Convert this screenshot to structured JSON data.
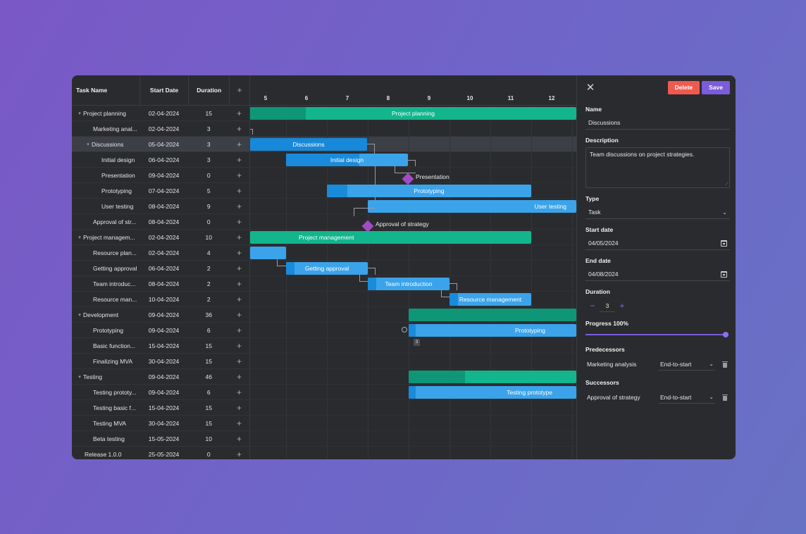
{
  "grid": {
    "headers": {
      "name": "Task Name",
      "start": "Start Date",
      "duration": "Duration",
      "add": "+"
    },
    "rows": [
      {
        "name": "Project planning",
        "start": "02-04-2024",
        "duration": "15",
        "caret": "▾"
      },
      {
        "name": "Marketing anal...",
        "start": "02-04-2024",
        "duration": "3",
        "caret": ""
      },
      {
        "name": "Discussions",
        "start": "05-04-2024",
        "duration": "3",
        "caret": "▾"
      },
      {
        "name": "Initial design",
        "start": "06-04-2024",
        "duration": "3",
        "caret": ""
      },
      {
        "name": "Presentation",
        "start": "09-04-2024",
        "duration": "0",
        "caret": ""
      },
      {
        "name": "Prototyping",
        "start": "07-04-2024",
        "duration": "5",
        "caret": ""
      },
      {
        "name": "User testing",
        "start": "08-04-2024",
        "duration": "9",
        "caret": ""
      },
      {
        "name": "Approval of str...",
        "start": "08-04-2024",
        "duration": "0",
        "caret": ""
      },
      {
        "name": "Project managem...",
        "start": "02-04-2024",
        "duration": "10",
        "caret": "▾"
      },
      {
        "name": "Resource plan...",
        "start": "02-04-2024",
        "duration": "4",
        "caret": ""
      },
      {
        "name": "Getting approval",
        "start": "06-04-2024",
        "duration": "2",
        "caret": ""
      },
      {
        "name": "Team introduc...",
        "start": "08-04-2024",
        "duration": "2",
        "caret": ""
      },
      {
        "name": "Resource man...",
        "start": "10-04-2024",
        "duration": "2",
        "caret": ""
      },
      {
        "name": "Development",
        "start": "09-04-2024",
        "duration": "36",
        "caret": "▾"
      },
      {
        "name": "Prototyping",
        "start": "09-04-2024",
        "duration": "6",
        "caret": ""
      },
      {
        "name": "Basic function...",
        "start": "15-04-2024",
        "duration": "15",
        "caret": ""
      },
      {
        "name": "Finalizing MVA",
        "start": "30-04-2024",
        "duration": "15",
        "caret": ""
      },
      {
        "name": "Testing",
        "start": "09-04-2024",
        "duration": "46",
        "caret": "▾"
      },
      {
        "name": "Testing prototy...",
        "start": "09-04-2024",
        "duration": "6",
        "caret": ""
      },
      {
        "name": "Testing basic f...",
        "start": "15-04-2024",
        "duration": "15",
        "caret": ""
      },
      {
        "name": "Testing MVA",
        "start": "30-04-2024",
        "duration": "15",
        "caret": ""
      },
      {
        "name": "Beta testing",
        "start": "15-05-2024",
        "duration": "10",
        "caret": ""
      },
      {
        "name": "Release 1.0.0",
        "start": "25-05-2024",
        "duration": "0",
        "caret": ""
      }
    ]
  },
  "timeline": {
    "days": [
      "5",
      "6",
      "7",
      "8",
      "9",
      "10",
      "11",
      "12"
    ],
    "bars": {
      "project_planning": "Project planning",
      "discussions": "Discussions",
      "initial_design": "Initial design",
      "presentation": "Presentation",
      "prototyping": "Prototyping",
      "user_testing": "User testing",
      "approval": "Approval of strategy",
      "project_management": "Project management",
      "getting_approval": "Getting approval",
      "team_intro": "Team introduction",
      "resource_mgmt": "Resource management",
      "dev_prototyping": "Prototyping",
      "dev_badge": "3",
      "testing_prototype": "Testing prototype"
    }
  },
  "editor": {
    "delete_label": "Delete",
    "save_label": "Save",
    "name_label": "Name",
    "name_value": "Discussions",
    "description_label": "Description",
    "description_value": "Team discussions on project strategies.",
    "type_label": "Type",
    "type_value": "Task",
    "start_label": "Start date",
    "start_value": "04/05/2024",
    "end_label": "End date",
    "end_value": "04/08/2024",
    "duration_label": "Duration",
    "duration_value": "3",
    "minus": "−",
    "plus": "+",
    "progress_label": "Progress 100%",
    "progress_value": 100,
    "predecessors_label": "Predecessors",
    "predecessor_name": "Marketing analysis",
    "predecessor_type": "End-to-start",
    "successors_label": "Successors",
    "successor_name": "Approval of strategy",
    "successor_type": "End-to-start"
  },
  "colors": {
    "parent_bar": "#12b58c",
    "task_bar": "#3ba3ea",
    "milestone": "#a14bc4",
    "delete": "#ef5a4f",
    "save": "#7b5cd9"
  }
}
